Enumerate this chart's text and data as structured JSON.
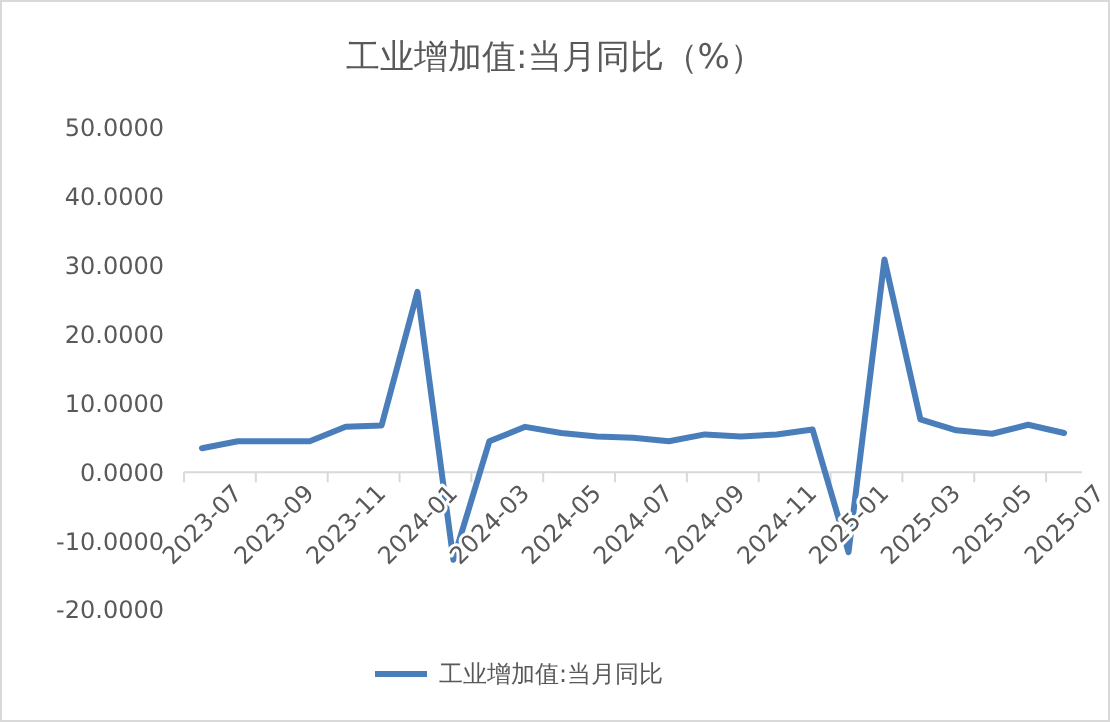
{
  "chart_data": {
    "type": "line",
    "title": "工业增加值:当月同比（%）",
    "categories": [
      "2023-07",
      null,
      "2023-09",
      null,
      "2023-11",
      null,
      "2024-01",
      null,
      "2024-03",
      null,
      "2024-05",
      null,
      "2024-07",
      null,
      "2024-09",
      null,
      "2024-11",
      null,
      "2025-01",
      null,
      "2025-03",
      null,
      "2025-05",
      null,
      "2025-07"
    ],
    "series": [
      {
        "name": "工业增加值:当月同比",
        "color": "#4a7ebb",
        "values": [
          3.5,
          4.5,
          4.5,
          4.5,
          6.6,
          6.8,
          26.2,
          -12.7,
          4.5,
          6.6,
          5.7,
          5.2,
          5.0,
          4.5,
          5.5,
          5.2,
          5.5,
          6.2,
          -11.6,
          30.9,
          7.7,
          6.1,
          5.6,
          6.9,
          5.7
        ]
      }
    ],
    "ylim": [
      -20,
      50
    ],
    "yticks": [
      {
        "value": -20,
        "label": "-20.0000"
      },
      {
        "value": -10,
        "label": "-10.0000"
      },
      {
        "value": 0,
        "label": "0.0000"
      },
      {
        "value": 10,
        "label": "10.0000"
      },
      {
        "value": 20,
        "label": "20.0000"
      },
      {
        "value": 30,
        "label": "30.0000"
      },
      {
        "value": 40,
        "label": "40.0000"
      },
      {
        "value": 50,
        "label": "50.0000"
      }
    ],
    "grid": false,
    "legend": "bottom",
    "line_style": "solid"
  }
}
